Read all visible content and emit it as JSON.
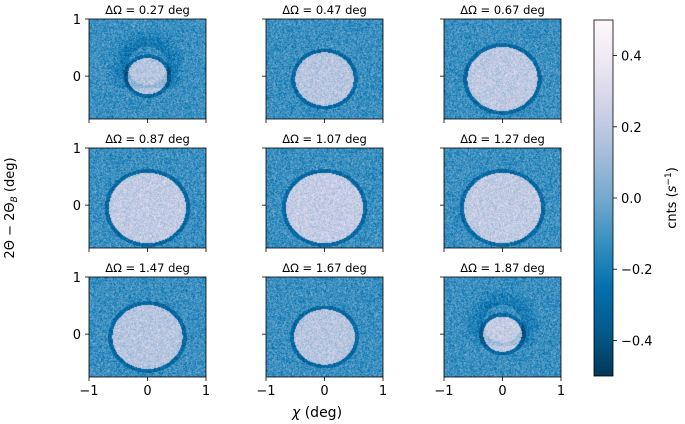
{
  "chart_data": {
    "type": "heatmap",
    "panels": [
      {
        "title": "ΔΩ = 0.27 deg",
        "delta_omega_deg": 0.27,
        "disk_radius": 0.34,
        "disk_center_y": 0.0,
        "disk_intensity": 0.3,
        "shadow": true
      },
      {
        "title": "ΔΩ = 0.47 deg",
        "delta_omega_deg": 0.47,
        "disk_radius": 0.5,
        "disk_center_y": -0.05,
        "disk_intensity": 0.3,
        "shadow": false
      },
      {
        "title": "ΔΩ = 0.67 deg",
        "delta_omega_deg": 0.67,
        "disk_radius": 0.6,
        "disk_center_y": -0.05,
        "disk_intensity": 0.32,
        "shadow": false
      },
      {
        "title": "ΔΩ = 0.87 deg",
        "delta_omega_deg": 0.87,
        "disk_radius": 0.66,
        "disk_center_y": -0.05,
        "disk_intensity": 0.33,
        "shadow": false
      },
      {
        "title": "ΔΩ = 1.07 deg",
        "delta_omega_deg": 1.07,
        "disk_radius": 0.66,
        "disk_center_y": -0.05,
        "disk_intensity": 0.34,
        "shadow": false
      },
      {
        "title": "ΔΩ = 1.27 deg",
        "delta_omega_deg": 1.27,
        "disk_radius": 0.66,
        "disk_center_y": -0.05,
        "disk_intensity": 0.33,
        "shadow": false
      },
      {
        "title": "ΔΩ = 1.47 deg",
        "delta_omega_deg": 1.47,
        "disk_radius": 0.6,
        "disk_center_y": -0.05,
        "disk_intensity": 0.3,
        "shadow": false
      },
      {
        "title": "ΔΩ = 1.67 deg",
        "delta_omega_deg": 1.67,
        "disk_radius": 0.52,
        "disk_center_y": -0.05,
        "disk_intensity": 0.3,
        "shadow": false
      },
      {
        "title": "ΔΩ = 1.87 deg",
        "delta_omega_deg": 1.87,
        "disk_radius": 0.33,
        "disk_center_y": 0.0,
        "disk_intensity": 0.34,
        "shadow": true
      }
    ],
    "xlabel": "χ (deg)",
    "ylabel": "2Θ − 2Θ",
    "ylabel_subscript": "B",
    "ylabel_unit": "(deg)",
    "x_ticks": [
      -1,
      0,
      1
    ],
    "x_tick_labels": [
      "−1",
      "0",
      "1"
    ],
    "y_ticks": [
      1,
      0
    ],
    "y_tick_labels": [
      "1",
      "0"
    ],
    "xlim": [
      -1,
      1
    ],
    "ylim": [
      -0.75,
      1
    ],
    "colorbar": {
      "label_text": "cnts (",
      "label_math": "s",
      "label_exp": "−1",
      "label_close": ")",
      "min": -0.5,
      "max": 0.5,
      "ticks": [
        0.4,
        0.2,
        0.0,
        -0.2,
        -0.4
      ],
      "tick_labels": [
        "0.4",
        "0.2",
        "0.0",
        "−0.2",
        "−0.4"
      ],
      "colormap": "PuBu_r"
    },
    "background_level": -0.12
  }
}
